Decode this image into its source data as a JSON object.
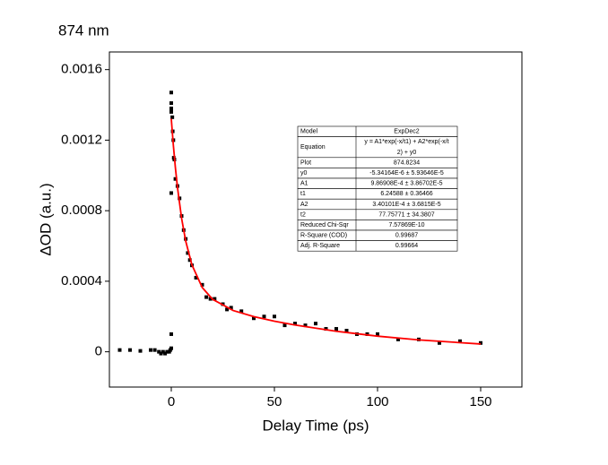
{
  "chart_data": {
    "type": "scatter",
    "title": "874 nm",
    "x_label": "Delay Time (ps)",
    "y_label": "ΔOD (a.u.)",
    "xlim": [
      -30,
      170
    ],
    "ylim": [
      -0.0002,
      0.0017
    ],
    "xticks": [
      0,
      50,
      100,
      150
    ],
    "yticks": [
      0,
      0.0004,
      0.0008,
      0.0012,
      0.0016
    ],
    "series": [
      {
        "name": "874 nm",
        "color": "#000000",
        "type": "scatter",
        "x": [
          -25,
          -20,
          -15,
          -10,
          -8,
          -6,
          -5,
          -4,
          -3,
          -2,
          -1,
          -0.5,
          0,
          0,
          0,
          0,
          0,
          0,
          0,
          0.5,
          0.7,
          1,
          1.2,
          1.5,
          2,
          3,
          4,
          5,
          6,
          7,
          8,
          9,
          10,
          12,
          15,
          17,
          19,
          21,
          25,
          27,
          29,
          34,
          40,
          45,
          50,
          55,
          60,
          65,
          70,
          75,
          80,
          85,
          90,
          95,
          100,
          110,
          120,
          130,
          140,
          150
        ],
        "values": [
          1e-05,
          1e-05,
          5e-06,
          1e-05,
          1e-05,
          0,
          -1e-05,
          0,
          -1e-05,
          0,
          0,
          1e-05,
          0.0001,
          2e-05,
          0.0009,
          0.00147,
          0.00141,
          0.00138,
          0.00136,
          0.00133,
          0.00125,
          0.0012,
          0.0011,
          0.00109,
          0.00098,
          0.00094,
          0.00087,
          0.00077,
          0.00069,
          0.00064,
          0.00056,
          0.00052,
          0.00049,
          0.00042,
          0.00038,
          0.00031,
          0.0003,
          0.0003,
          0.00027,
          0.00024,
          0.00025,
          0.00023,
          0.00019,
          0.0002,
          0.0002,
          0.00015,
          0.00016,
          0.00015,
          0.00016,
          0.00013,
          0.00013,
          0.00012,
          0.0001,
          0.0001,
          0.0001,
          7e-05,
          7e-05,
          5e-05,
          6e-05,
          5e-05
        ]
      },
      {
        "name": "ExpDec2",
        "color": "#ff0000",
        "type": "line",
        "x": [
          0,
          1,
          2,
          3,
          5,
          7,
          10,
          15,
          20,
          30,
          40,
          50,
          60,
          80,
          100,
          120,
          150
        ],
        "values": [
          0.001321,
          0.0011714,
          0.0010427,
          0.0009324,
          0.0007568,
          0.0006273,
          0.0004928,
          0.0003645,
          0.0002979,
          0.000234,
          0.0001996,
          0.0001735,
          0.0001519,
          0.0001163,
          8.87e-05,
          6.74e-05,
          4.41e-05
        ]
      }
    ],
    "fit_table": {
      "rows": [
        [
          "Model",
          [
            "ExpDec2"
          ]
        ],
        [
          "Equation",
          [
            "y = A1*exp(-x/t1) + A2*exp(-x/t",
            "2) + y0"
          ]
        ],
        [
          "Plot",
          [
            "874.8234"
          ]
        ],
        [
          "y0",
          [
            "-5.34164E-6 ± 5.93646E-5"
          ]
        ],
        [
          "A1",
          [
            "9.86908E-4 ± 3.86702E-5"
          ]
        ],
        [
          "t1",
          [
            "6.24588 ± 0.36466"
          ]
        ],
        [
          "A2",
          [
            "3.40101E-4 ± 3.6815E-5"
          ]
        ],
        [
          "t2",
          [
            "77.75771 ± 34.3807"
          ]
        ],
        [
          "Reduced Chi-Sqr",
          [
            "7.57869E-10"
          ]
        ],
        [
          "R-Square (COD)",
          [
            "0.99687"
          ]
        ],
        [
          "Adj. R-Square",
          [
            "0.99664"
          ]
        ]
      ]
    }
  }
}
